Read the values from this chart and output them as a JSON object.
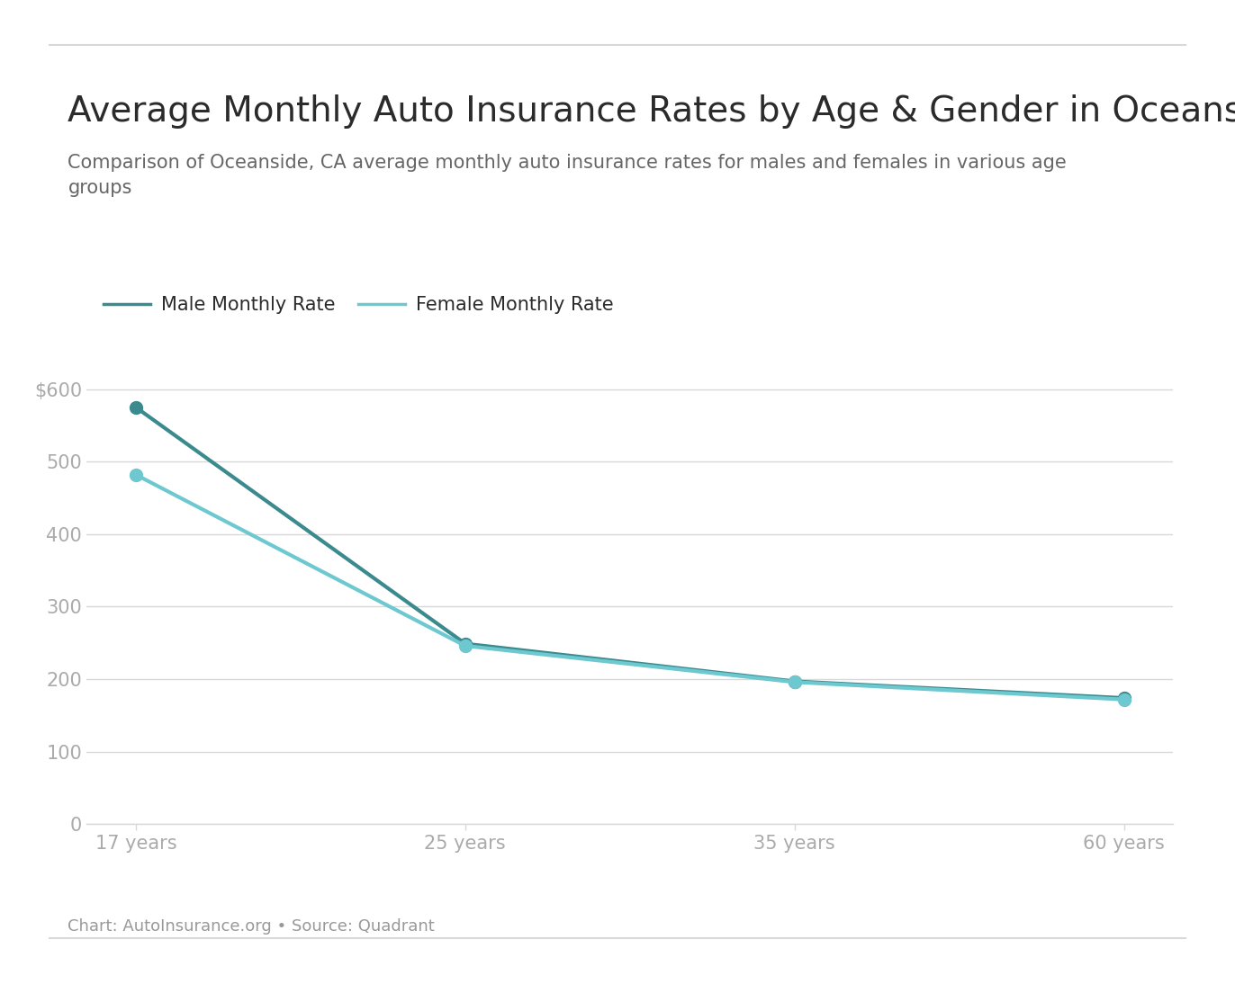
{
  "title": "Average Monthly Auto Insurance Rates by Age & Gender in Oceanside, CA",
  "subtitle": "Comparison of Oceanside, CA average monthly auto insurance rates for males and females in various age\ngroups",
  "x_labels": [
    "17 years",
    "25 years",
    "35 years",
    "60 years"
  ],
  "x_values": [
    0,
    1,
    2,
    3
  ],
  "male_values": [
    575,
    249,
    197,
    174
  ],
  "female_values": [
    482,
    246,
    196,
    172
  ],
  "male_color": "#3a8a8e",
  "female_color": "#6dc8d0",
  "male_label": "Male Monthly Rate",
  "female_label": "Female Monthly Rate",
  "y_ticks": [
    0,
    100,
    200,
    300,
    400,
    500
  ],
  "y_top_label": "$600",
  "ylim": [
    0,
    630
  ],
  "background_color": "#ffffff",
  "grid_color": "#d8d8d8",
  "tick_label_color": "#aaaaaa",
  "title_color": "#2b2b2b",
  "subtitle_color": "#666666",
  "footer_text": "Chart: AutoInsurance.org • Source: Quadrant",
  "footer_color": "#999999",
  "title_fontsize": 28,
  "subtitle_fontsize": 15,
  "legend_fontsize": 15,
  "tick_fontsize": 15,
  "footer_fontsize": 13,
  "linewidth": 3,
  "markersize": 10
}
